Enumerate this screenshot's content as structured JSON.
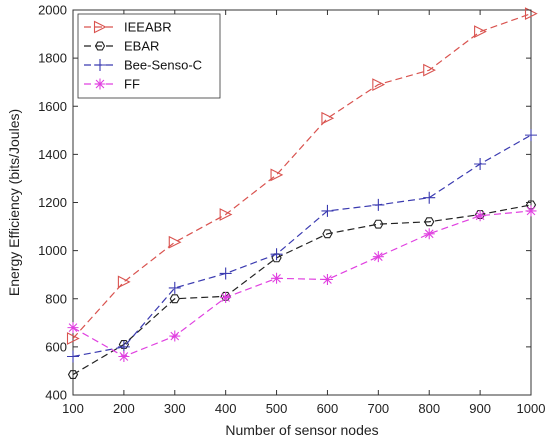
{
  "chart_data": {
    "type": "line",
    "title": "",
    "xlabel": "Number of sensor nodes",
    "ylabel": "Energy Efficiency (bits/Joules)",
    "x": [
      100,
      200,
      300,
      400,
      500,
      600,
      700,
      800,
      900,
      1000
    ],
    "xlim": [
      100,
      1000
    ],
    "ylim": [
      400,
      2000
    ],
    "xticks": [
      "100",
      "200",
      "300",
      "400",
      "500",
      "600",
      "700",
      "800",
      "900",
      "1000"
    ],
    "yticks": [
      "400",
      "600",
      "800",
      "1000",
      "1200",
      "1400",
      "1600",
      "1800",
      "2000"
    ],
    "grid": false,
    "legend_position": "top-left",
    "series": [
      {
        "name": "IEEABR",
        "color": "#d9534f",
        "marker": "triangle-right",
        "values": [
          635,
          870,
          1035,
          1150,
          1315,
          1550,
          1690,
          1750,
          1910,
          1985
        ]
      },
      {
        "name": "EBAR",
        "color": "#222222",
        "marker": "hexagon",
        "values": [
          485,
          610,
          800,
          810,
          970,
          1070,
          1110,
          1120,
          1150,
          1190
        ]
      },
      {
        "name": "Bee-Senso-C",
        "color": "#3a3ab0",
        "marker": "plus",
        "values": [
          560,
          600,
          845,
          905,
          985,
          1165,
          1190,
          1220,
          1360,
          1480
        ]
      },
      {
        "name": "FF",
        "color": "#e040e0",
        "marker": "asterisk",
        "values": [
          680,
          560,
          645,
          805,
          885,
          880,
          975,
          1070,
          1145,
          1165
        ]
      }
    ]
  }
}
